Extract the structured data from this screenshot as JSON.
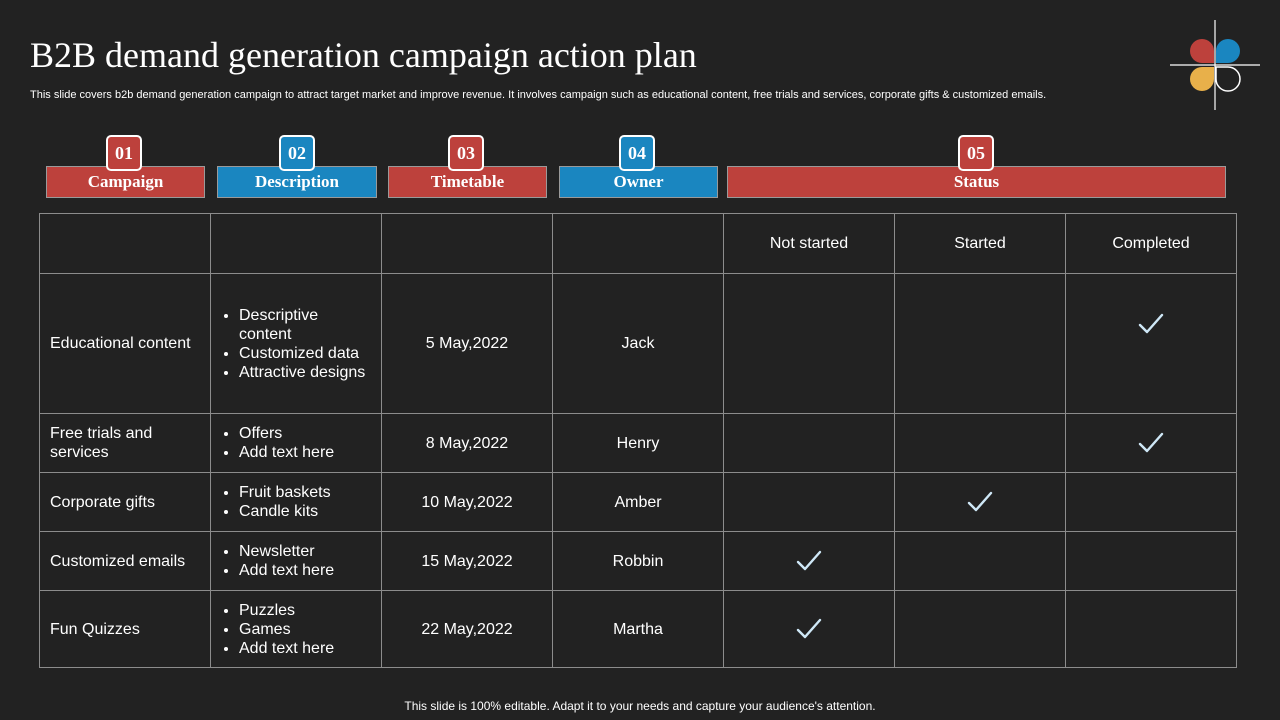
{
  "title": "B2B demand generation campaign action plan",
  "subtitle": "This slide covers b2b demand generation campaign to attract target market and improve revenue. It involves campaign such as educational content, free trials and services, corporate gifts & customized emails.",
  "headers": [
    {
      "num": "01",
      "label": "Campaign"
    },
    {
      "num": "02",
      "label": "Description"
    },
    {
      "num": "03",
      "label": "Timetable"
    },
    {
      "num": "04",
      "label": "Owner"
    },
    {
      "num": "05",
      "label": "Status"
    }
  ],
  "status_columns": [
    "Not started",
    "Started",
    "Completed"
  ],
  "rows": [
    {
      "campaign": "Educational content",
      "description": [
        "Descriptive content",
        "Customized data",
        "Attractive designs"
      ],
      "date": "5 May,2022",
      "owner": "Jack",
      "status": "Completed"
    },
    {
      "campaign": "Free trials and services",
      "description": [
        "Offers",
        "Add text here"
      ],
      "date": "8 May,2022",
      "owner": "Henry",
      "status": "Completed"
    },
    {
      "campaign": "Corporate gifts",
      "description": [
        "Fruit baskets",
        "Candle kits"
      ],
      "date": "10 May,2022",
      "owner": "Amber",
      "status": "Started"
    },
    {
      "campaign": "Customized emails",
      "description": [
        "Newsletter",
        "Add text here"
      ],
      "date": "15 May,2022",
      "owner": "Robbin",
      "status": "Not started"
    },
    {
      "campaign": "Fun Quizzes",
      "description": [
        "Puzzles",
        "Games",
        "Add text here"
      ],
      "date": "22 May,2022",
      "owner": "Martha",
      "status": "Not started"
    }
  ],
  "footer": "This slide is 100% editable. Adapt it to your needs and capture your audience's attention.",
  "colors": {
    "background": "#222222",
    "red": "#bd413c",
    "blue": "#1a86c0",
    "check": "#cfe8f7"
  }
}
